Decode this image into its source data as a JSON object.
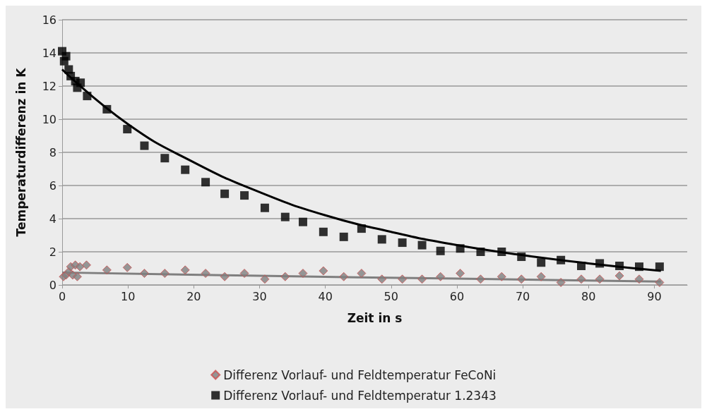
{
  "chart_data": {
    "type": "scatter",
    "xlabel": "Zeit in s",
    "ylabel": "Temperaturdifferenz in K",
    "xlim": [
      0,
      95
    ],
    "xticks": [
      0,
      10,
      20,
      30,
      40,
      50,
      60,
      70,
      80,
      90
    ],
    "ylim": [
      0,
      16
    ],
    "yticks": [
      0,
      2,
      4,
      6,
      8,
      10,
      12,
      14,
      16
    ],
    "grid": "y",
    "legend": "bottom",
    "series": [
      {
        "name": "Differenz Vorlauf- und Feldtemperatur FeCoNi",
        "color": "#7f7f7f",
        "marker": "diamond",
        "x": [
          0.2,
          0.6,
          1,
          1.3,
          1.6,
          2,
          2.3,
          2.7,
          3.7,
          6.8,
          9.9,
          12.5,
          15.6,
          18.7,
          21.8,
          24.7,
          27.7,
          30.8,
          33.9,
          36.6,
          39.7,
          42.8,
          45.5,
          48.6,
          51.7,
          54.7,
          57.5,
          60.5,
          63.6,
          66.8,
          69.8,
          72.8,
          75.8,
          78.9,
          81.7,
          84.7,
          87.7,
          90.8
        ],
        "values": [
          0.5,
          0.6,
          0.8,
          1.1,
          0.6,
          1.2,
          0.5,
          1.1,
          1.2,
          0.9,
          1.05,
          0.7,
          0.7,
          0.9,
          0.7,
          0.5,
          0.7,
          0.35,
          0.5,
          0.7,
          0.85,
          0.5,
          0.7,
          0.35,
          0.35,
          0.35,
          0.5,
          0.7,
          0.35,
          0.5,
          0.35,
          0.5,
          0.15,
          0.35,
          0.35,
          0.55,
          0.35,
          0.15
        ]
      },
      {
        "name": "Differenz Vorlauf- und Feldtemperatur 1.2343",
        "color": "#000000",
        "marker": "square",
        "x": [
          0,
          0.3,
          0.6,
          1,
          1.3,
          2,
          2.3,
          2.8,
          3.8,
          6.8,
          9.9,
          12.5,
          15.6,
          18.7,
          21.8,
          24.7,
          27.7,
          30.8,
          33.9,
          36.6,
          39.7,
          42.8,
          45.5,
          48.6,
          51.7,
          54.7,
          57.5,
          60.5,
          63.6,
          66.8,
          69.8,
          72.8,
          75.8,
          78.9,
          81.7,
          84.7,
          87.7,
          90.8
        ],
        "values": [
          14.1,
          13.5,
          13.8,
          13.0,
          12.6,
          12.3,
          11.9,
          12.2,
          11.4,
          10.6,
          9.4,
          8.4,
          7.65,
          6.95,
          6.2,
          5.5,
          5.4,
          4.65,
          4.1,
          3.8,
          3.2,
          2.9,
          3.4,
          2.75,
          2.55,
          2.4,
          2.05,
          2.2,
          2.0,
          2.0,
          1.7,
          1.35,
          1.5,
          1.15,
          1.3,
          1.15,
          1.1,
          1.1
        ]
      },
      {
        "type": "line",
        "color": "#7f7f7f",
        "marker": "none",
        "x": [
          0,
          30,
          60,
          91
        ],
        "values": [
          0.75,
          0.55,
          0.38,
          0.2
        ]
      },
      {
        "type": "line",
        "color": "#000000",
        "marker": "none",
        "x": [
          0,
          10,
          20,
          30,
          40,
          50,
          60,
          70,
          80,
          91
        ],
        "values": [
          13.0,
          9.7,
          7.4,
          5.6,
          4.2,
          3.2,
          2.4,
          1.8,
          1.3,
          0.85
        ]
      }
    ]
  }
}
